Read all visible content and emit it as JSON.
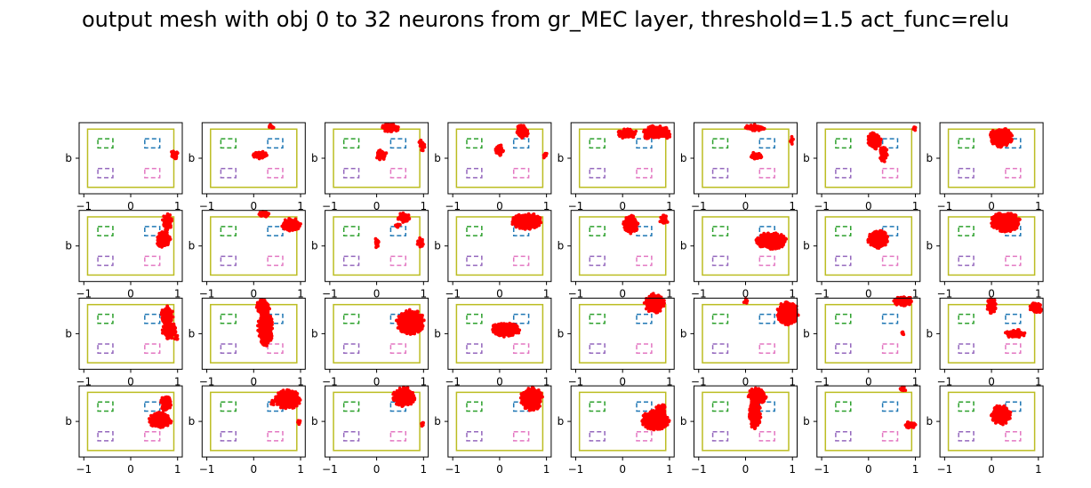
{
  "figure": {
    "title": "output mesh with obj 0 to 32 neurons from gr_MEC layer, threshold=1.5 act_func=relu"
  },
  "colors": {
    "background": "#ffffff",
    "frame": "#000000",
    "boundary": "#bcbd22",
    "obstacle_top_left": "#2ca02c",
    "obstacle_top_right": "#1f77b4",
    "obstacle_bottom_left": "#9467bd",
    "obstacle_bottom_right": "#e377c2",
    "points": "#ff0000"
  },
  "chart_data": {
    "type": "scatter",
    "rows": 4,
    "cols": 8,
    "xlim": [
      -1.1,
      1.1
    ],
    "ylim": [
      -0.55,
      0.55
    ],
    "x_ticks": [
      -1,
      0,
      1
    ],
    "x_tick_labels": [
      "−1",
      "0",
      "1"
    ],
    "y_tick_labels": [
      "b"
    ],
    "x_ticks_shown_on_row": 3,
    "grid": false,
    "environment": {
      "boundary": {
        "x0": -0.92,
        "x1": 0.92,
        "y0": -0.45,
        "y1": 0.45
      },
      "obstacles": [
        {
          "name": "top_left",
          "x0": -0.7,
          "x1": -0.38,
          "y0": 0.16,
          "y1": 0.3
        },
        {
          "name": "top_right",
          "x0": 0.3,
          "x1": 0.62,
          "y0": 0.16,
          "y1": 0.3
        },
        {
          "name": "bottom_left",
          "x0": -0.7,
          "x1": -0.38,
          "y0": -0.3,
          "y1": -0.16
        },
        {
          "name": "bottom_right",
          "x0": 0.3,
          "x1": 0.62,
          "y0": -0.3,
          "y1": -0.16
        }
      ]
    },
    "neurons": [
      {
        "index": 0,
        "blobs": [
          {
            "x": 0.93,
            "y": 0.05,
            "rx": 0.08,
            "ry": 0.06
          }
        ]
      },
      {
        "index": 1,
        "blobs": [
          {
            "x": 0.15,
            "y": 0.05,
            "rx": 0.15,
            "ry": 0.06
          },
          {
            "x": 0.38,
            "y": 0.49,
            "rx": 0.05,
            "ry": 0.03
          }
        ]
      },
      {
        "index": 2,
        "blobs": [
          {
            "x": 0.3,
            "y": 0.47,
            "rx": 0.18,
            "ry": 0.06
          },
          {
            "x": 0.1,
            "y": 0.05,
            "rx": 0.11,
            "ry": 0.07
          },
          {
            "x": 0.98,
            "y": 0.18,
            "rx": 0.05,
            "ry": 0.06
          },
          {
            "x": 0.93,
            "y": 0.25,
            "rx": 0.03,
            "ry": 0.03
          }
        ]
      },
      {
        "index": 3,
        "blobs": [
          {
            "x": 0.48,
            "y": 0.41,
            "rx": 0.12,
            "ry": 0.1
          },
          {
            "x": 0.0,
            "y": 0.13,
            "rx": 0.08,
            "ry": 0.09
          },
          {
            "x": 0.97,
            "y": 0.05,
            "rx": 0.04,
            "ry": 0.05
          }
        ]
      },
      {
        "index": 4,
        "blobs": [
          {
            "x": 0.1,
            "y": 0.38,
            "rx": 0.2,
            "ry": 0.07
          },
          {
            "x": 0.72,
            "y": 0.41,
            "rx": 0.25,
            "ry": 0.09
          },
          {
            "x": 0.52,
            "y": 0.33,
            "rx": 0.08,
            "ry": 0.05
          },
          {
            "x": 0.96,
            "y": 0.37,
            "rx": 0.06,
            "ry": 0.06
          }
        ]
      },
      {
        "index": 5,
        "blobs": [
          {
            "x": 0.2,
            "y": 0.47,
            "rx": 0.2,
            "ry": 0.05
          },
          {
            "x": 0.23,
            "y": 0.04,
            "rx": 0.13,
            "ry": 0.05
          },
          {
            "x": 0.98,
            "y": 0.27,
            "rx": 0.04,
            "ry": 0.06
          }
        ]
      },
      {
        "index": 6,
        "blobs": [
          {
            "x": 0.12,
            "y": 0.27,
            "rx": 0.14,
            "ry": 0.12
          },
          {
            "x": 0.32,
            "y": 0.07,
            "rx": 0.08,
            "ry": 0.12
          },
          {
            "x": 0.98,
            "y": 0.46,
            "rx": 0.03,
            "ry": 0.03
          }
        ]
      },
      {
        "index": 7,
        "blobs": [
          {
            "x": 0.2,
            "y": 0.32,
            "rx": 0.23,
            "ry": 0.14
          }
        ]
      },
      {
        "index": 8,
        "blobs": [
          {
            "x": 0.78,
            "y": 0.37,
            "rx": 0.1,
            "ry": 0.12
          },
          {
            "x": 0.7,
            "y": 0.1,
            "rx": 0.15,
            "ry": 0.12
          }
        ]
      },
      {
        "index": 9,
        "blobs": [
          {
            "x": 0.8,
            "y": 0.33,
            "rx": 0.2,
            "ry": 0.09
          },
          {
            "x": 0.2,
            "y": 0.49,
            "rx": 0.12,
            "ry": 0.04
          }
        ]
      },
      {
        "index": 10,
        "blobs": [
          {
            "x": 0.58,
            "y": 0.44,
            "rx": 0.12,
            "ry": 0.07
          },
          {
            "x": 0.45,
            "y": 0.32,
            "rx": 0.05,
            "ry": 0.04
          },
          {
            "x": 0.0,
            "y": 0.05,
            "rx": 0.05,
            "ry": 0.07
          },
          {
            "x": 0.93,
            "y": 0.05,
            "rx": 0.06,
            "ry": 0.07
          }
        ]
      },
      {
        "index": 11,
        "blobs": [
          {
            "x": 0.58,
            "y": 0.38,
            "rx": 0.3,
            "ry": 0.12
          }
        ]
      },
      {
        "index": 12,
        "blobs": [
          {
            "x": 0.18,
            "y": 0.33,
            "rx": 0.15,
            "ry": 0.13
          },
          {
            "x": 0.88,
            "y": 0.4,
            "rx": 0.08,
            "ry": 0.07
          }
        ]
      },
      {
        "index": 13,
        "blobs": [
          {
            "x": 0.55,
            "y": 0.08,
            "rx": 0.3,
            "ry": 0.12
          }
        ]
      },
      {
        "index": 14,
        "blobs": [
          {
            "x": 0.2,
            "y": 0.1,
            "rx": 0.2,
            "ry": 0.14
          }
        ]
      },
      {
        "index": 15,
        "blobs": [
          {
            "x": 0.3,
            "y": 0.37,
            "rx": 0.3,
            "ry": 0.14
          }
        ]
      },
      {
        "index": 16,
        "blobs": [
          {
            "x": 0.78,
            "y": 0.28,
            "rx": 0.12,
            "ry": 0.14
          },
          {
            "x": 0.82,
            "y": 0.05,
            "rx": 0.14,
            "ry": 0.12
          },
          {
            "x": 0.97,
            "y": -0.05,
            "rx": 0.04,
            "ry": 0.04
          }
        ]
      },
      {
        "index": 17,
        "blobs": [
          {
            "x": 0.2,
            "y": 0.42,
            "rx": 0.14,
            "ry": 0.1
          },
          {
            "x": 0.25,
            "y": 0.08,
            "rx": 0.15,
            "ry": 0.25
          }
        ]
      },
      {
        "index": 18,
        "blobs": [
          {
            "x": 0.72,
            "y": 0.18,
            "rx": 0.28,
            "ry": 0.18
          }
        ]
      },
      {
        "index": 19,
        "blobs": [
          {
            "x": 0.12,
            "y": 0.06,
            "rx": 0.3,
            "ry": 0.1
          }
        ]
      },
      {
        "index": 20,
        "blobs": [
          {
            "x": 0.68,
            "y": 0.47,
            "rx": 0.2,
            "ry": 0.14
          }
        ]
      },
      {
        "index": 21,
        "blobs": [
          {
            "x": 0.9,
            "y": 0.32,
            "rx": 0.22,
            "ry": 0.17
          },
          {
            "x": 0.0,
            "y": 0.5,
            "rx": 0.04,
            "ry": 0.04
          }
        ]
      },
      {
        "index": 22,
        "blobs": [
          {
            "x": 0.75,
            "y": 0.5,
            "rx": 0.2,
            "ry": 0.07
          },
          {
            "x": 0.72,
            "y": 0.0,
            "rx": 0.03,
            "ry": 0.03
          }
        ]
      },
      {
        "index": 23,
        "blobs": [
          {
            "x": 0.0,
            "y": 0.43,
            "rx": 0.09,
            "ry": 0.12
          },
          {
            "x": 0.95,
            "y": 0.4,
            "rx": 0.12,
            "ry": 0.08
          },
          {
            "x": 0.5,
            "y": 0.0,
            "rx": 0.2,
            "ry": 0.06
          }
        ]
      },
      {
        "index": 24,
        "blobs": [
          {
            "x": 0.75,
            "y": 0.28,
            "rx": 0.1,
            "ry": 0.12
          },
          {
            "x": 0.63,
            "y": 0.02,
            "rx": 0.22,
            "ry": 0.12
          }
        ]
      },
      {
        "index": 25,
        "blobs": [
          {
            "x": 0.73,
            "y": 0.34,
            "rx": 0.25,
            "ry": 0.14
          },
          {
            "x": 0.4,
            "y": 0.29,
            "rx": 0.05,
            "ry": 0.04
          },
          {
            "x": 0.97,
            "y": -0.02,
            "rx": 0.04,
            "ry": 0.04
          }
        ]
      },
      {
        "index": 26,
        "blobs": [
          {
            "x": 0.58,
            "y": 0.38,
            "rx": 0.22,
            "ry": 0.14
          },
          {
            "x": 0.98,
            "y": -0.05,
            "rx": 0.03,
            "ry": 0.03
          }
        ]
      },
      {
        "index": 27,
        "blobs": [
          {
            "x": 0.68,
            "y": 0.35,
            "rx": 0.22,
            "ry": 0.17
          }
        ]
      },
      {
        "index": 28,
        "blobs": [
          {
            "x": 0.7,
            "y": 0.02,
            "rx": 0.28,
            "ry": 0.14
          },
          {
            "x": 0.82,
            "y": 0.2,
            "rx": 0.1,
            "ry": 0.06
          }
        ]
      },
      {
        "index": 29,
        "blobs": [
          {
            "x": 0.25,
            "y": 0.4,
            "rx": 0.18,
            "ry": 0.12
          },
          {
            "x": 0.2,
            "y": 0.1,
            "rx": 0.12,
            "ry": 0.2
          }
        ]
      },
      {
        "index": 30,
        "blobs": [
          {
            "x": 0.72,
            "y": 0.5,
            "rx": 0.07,
            "ry": 0.04
          },
          {
            "x": 0.9,
            "y": -0.05,
            "rx": 0.12,
            "ry": 0.05
          }
        ]
      },
      {
        "index": 31,
        "blobs": [
          {
            "x": 0.2,
            "y": 0.1,
            "rx": 0.2,
            "ry": 0.14
          }
        ]
      }
    ]
  }
}
